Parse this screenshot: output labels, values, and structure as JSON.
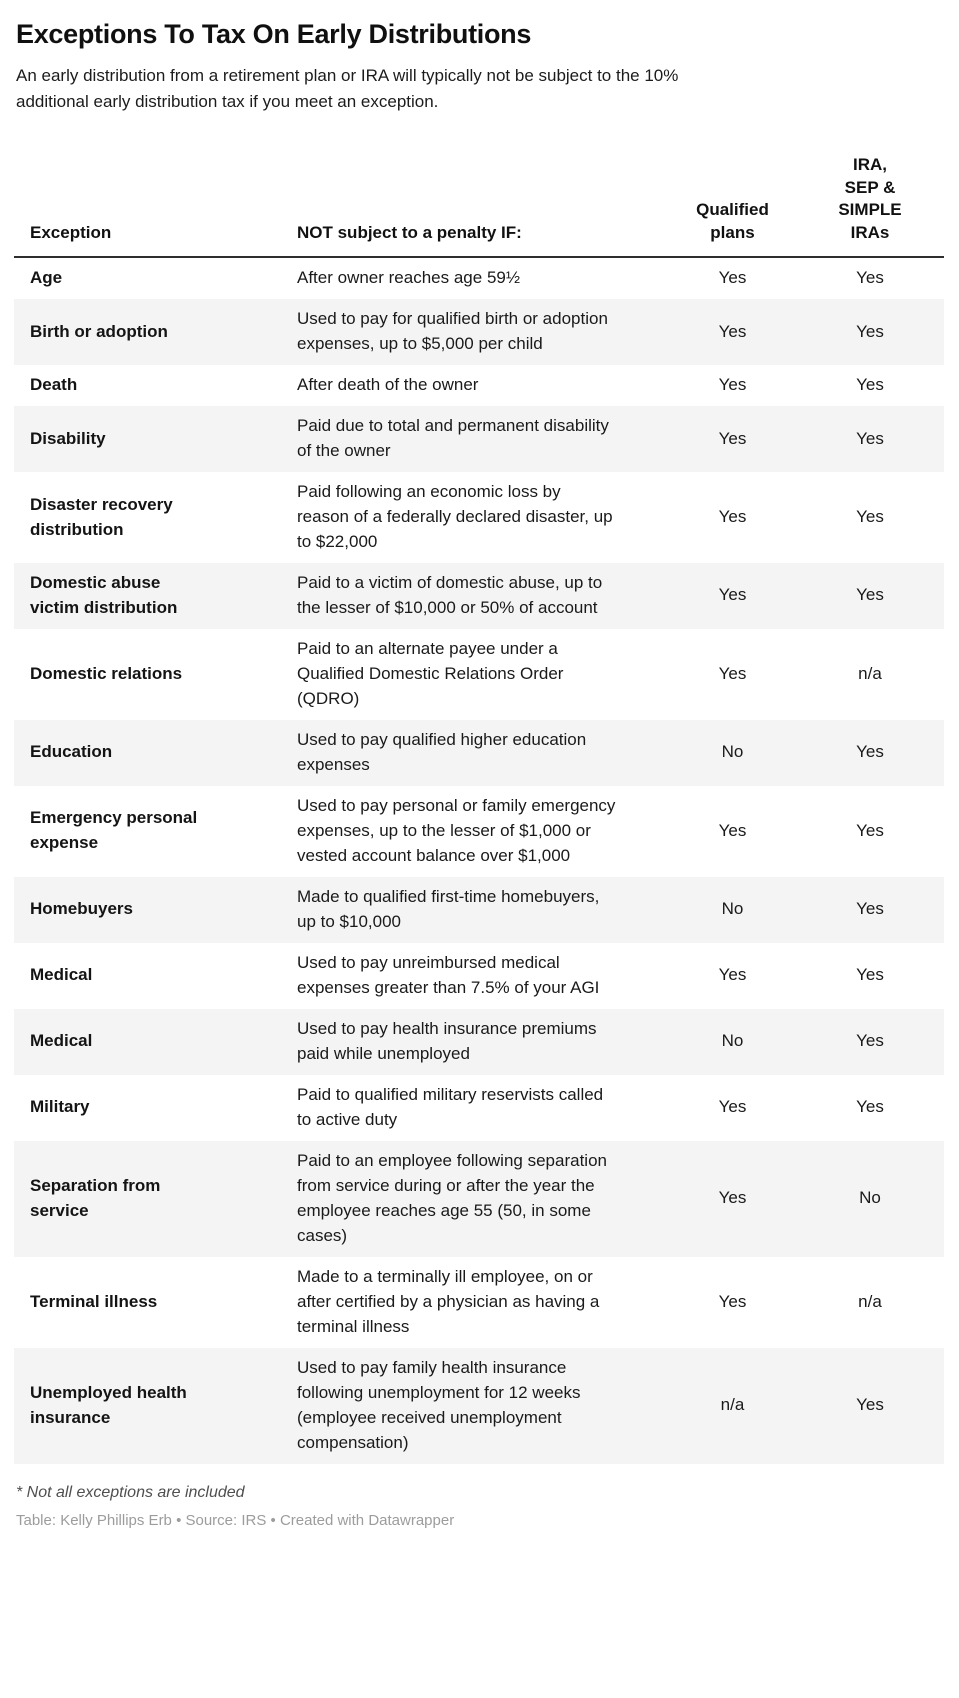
{
  "page": {
    "title": "Exceptions To Tax On Early Distributions",
    "intro": "An early distribution from a retirement plan or IRA will typically not be subject to the 10%\nadditional early distribution tax if you meet an exception."
  },
  "chart_data": {
    "type": "table",
    "title": "Exceptions To Tax On Early Distributions",
    "columns": [
      "Exception",
      "NOT subject to a penalty IF:",
      "Qualified plans",
      "IRA, SEP & SIMPLE IRAs"
    ],
    "columns_display": {
      "exception": "Exception",
      "condition": "NOT subject to a penalty IF:",
      "qualified_plans": "Qualified\nplans",
      "ira_sep_simple": "IRA,\nSEP &\nSIMPLE\nIRAs"
    },
    "rows": [
      {
        "exception": "Age",
        "condition": "After owner reaches age 59½",
        "qualified_plans": "Yes",
        "ira_sep_simple": "Yes"
      },
      {
        "exception": "Birth or adoption",
        "condition": "Used to pay for qualified birth or adoption expenses, up to $5,000 per child",
        "qualified_plans": "Yes",
        "ira_sep_simple": "Yes"
      },
      {
        "exception": "Death",
        "condition": "After death of the owner",
        "qualified_plans": "Yes",
        "ira_sep_simple": "Yes"
      },
      {
        "exception": "Disability",
        "condition": "Paid due to total and permanent disability of the owner",
        "qualified_plans": "Yes",
        "ira_sep_simple": "Yes"
      },
      {
        "exception": "Disaster recovery distribution",
        "condition": "Paid following an economic loss by reason of a federally declared disaster, up to $22,000",
        "qualified_plans": "Yes",
        "ira_sep_simple": "Yes"
      },
      {
        "exception": "Domestic abuse victim distribution",
        "condition": "Paid to a victim of domestic abuse, up to the lesser of $10,000 or 50% of account",
        "qualified_plans": "Yes",
        "ira_sep_simple": "Yes"
      },
      {
        "exception": "Domestic relations",
        "condition": "Paid to an alternate payee under a Qualified Domestic Relations Order (QDRO)",
        "qualified_plans": "Yes",
        "ira_sep_simple": "n/a"
      },
      {
        "exception": "Education",
        "condition": "Used to pay qualified higher education expenses",
        "qualified_plans": "No",
        "ira_sep_simple": "Yes"
      },
      {
        "exception": "Emergency personal expense",
        "condition": "Used to pay personal or family emergency expenses, up to the lesser of $1,000 or vested account balance over $1,000",
        "qualified_plans": "Yes",
        "ira_sep_simple": "Yes"
      },
      {
        "exception": "Homebuyers",
        "condition": "Made to qualified first-time homebuyers, up to $10,000",
        "qualified_plans": "No",
        "ira_sep_simple": "Yes"
      },
      {
        "exception": "Medical",
        "condition": "Used to pay unreimbursed medical expenses greater than 7.5% of your AGI",
        "qualified_plans": "Yes",
        "ira_sep_simple": "Yes"
      },
      {
        "exception": "Medical",
        "condition": "Used to pay health insurance premiums paid while unemployed",
        "qualified_plans": "No",
        "ira_sep_simple": "Yes"
      },
      {
        "exception": "Military",
        "condition": "Paid to qualified military reservists called to active duty",
        "qualified_plans": "Yes",
        "ira_sep_simple": "Yes"
      },
      {
        "exception": "Separation from service",
        "condition": "Paid to an employee following separation from service during or after the year the employee reaches age 55 (50, in some cases)",
        "qualified_plans": "Yes",
        "ira_sep_simple": "No"
      },
      {
        "exception": "Terminal illness",
        "condition": "Made to a terminally ill employee, on or after certified by a physician as having a terminal illness",
        "qualified_plans": "Yes",
        "ira_sep_simple": "n/a"
      },
      {
        "exception": "Unemployed health insurance",
        "condition": "Used to pay family health insurance following unemployment for 12 weeks (employee received unemployment compensation)",
        "qualified_plans": "n/a",
        "ira_sep_simple": "Yes"
      }
    ],
    "footnote": "* Not all exceptions are included",
    "attribution": "Table: Kelly Phillips Erb • Source: IRS • Created with Datawrapper",
    "layout_hints": {
      "striped_rows": true,
      "stripe_color": "#f4f4f4",
      "header_rule_color": "#2e2e2e",
      "attribution_color": "#9c9c9c"
    }
  }
}
